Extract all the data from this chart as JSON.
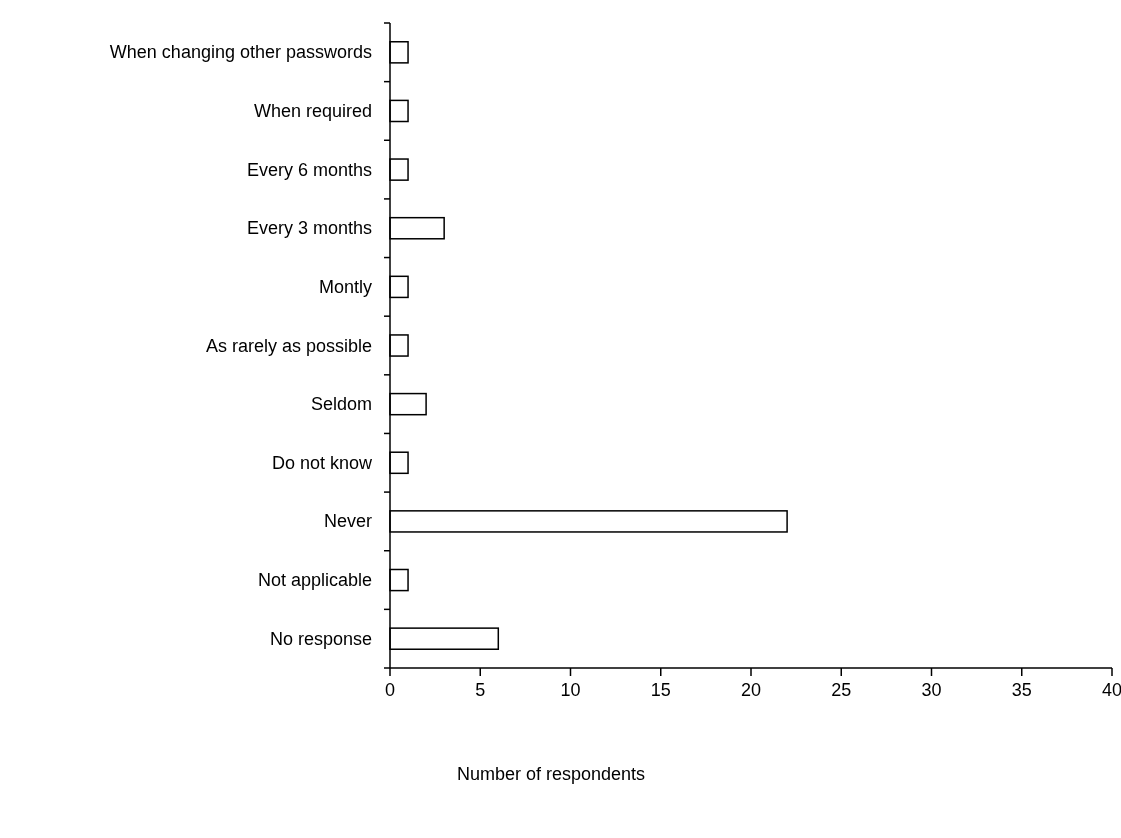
{
  "chart_data": {
    "type": "bar",
    "orientation": "horizontal",
    "xlabel": "Number of respondents",
    "categories": [
      "When changing other passwords",
      "When required",
      "Every 6 months",
      "Every 3 months",
      "Montly",
      "As rarely as possible",
      "Seldom",
      "Do not know",
      "Never",
      "Not applicable",
      "No response"
    ],
    "values": [
      1,
      1,
      1,
      3,
      1,
      1,
      2,
      1,
      22,
      1,
      6
    ],
    "color": "#ffffff",
    "xlim": [
      0,
      40
    ],
    "xticks": [
      0,
      5,
      10,
      15,
      20,
      25,
      30,
      35,
      40
    ],
    "grid": false
  }
}
